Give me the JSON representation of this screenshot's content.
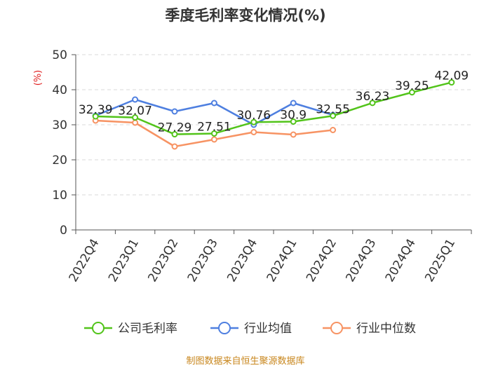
{
  "chart_data": {
    "type": "line",
    "title": "季度毛利率变化情况(%)",
    "ylabel": "(%)",
    "ylim": [
      0,
      50
    ],
    "yticks": [
      0,
      10,
      20,
      30,
      40,
      50
    ],
    "categories": [
      "2022Q4",
      "2023Q1",
      "2023Q2",
      "2023Q3",
      "2023Q4",
      "2024Q1",
      "2024Q2",
      "2024Q3",
      "2024Q4",
      "2025Q1"
    ],
    "series": [
      {
        "name": "公司毛利率",
        "color": "#52c41a",
        "values": [
          32.39,
          32.07,
          27.29,
          27.51,
          30.76,
          30.9,
          32.55,
          36.23,
          39.25,
          42.09
        ]
      },
      {
        "name": "行业均值",
        "color": "#4e7fe0",
        "values": [
          32.6,
          37.2,
          33.8,
          36.2,
          30.0,
          36.2,
          32.8,
          null,
          null,
          null
        ]
      },
      {
        "name": "行业中位数",
        "color": "#f79363",
        "values": [
          31.2,
          30.6,
          23.8,
          25.8,
          27.9,
          27.2,
          28.5,
          null,
          null,
          null
        ]
      }
    ],
    "data_labels": [
      "32.39",
      "32.07",
      "27.29",
      "27.51",
      "30.76",
      "30.9",
      "32.55",
      "36.23",
      "39.25",
      "42.09"
    ],
    "grid": true,
    "legend_position": "bottom"
  },
  "source": "制图数据来自恒生聚源数据库"
}
